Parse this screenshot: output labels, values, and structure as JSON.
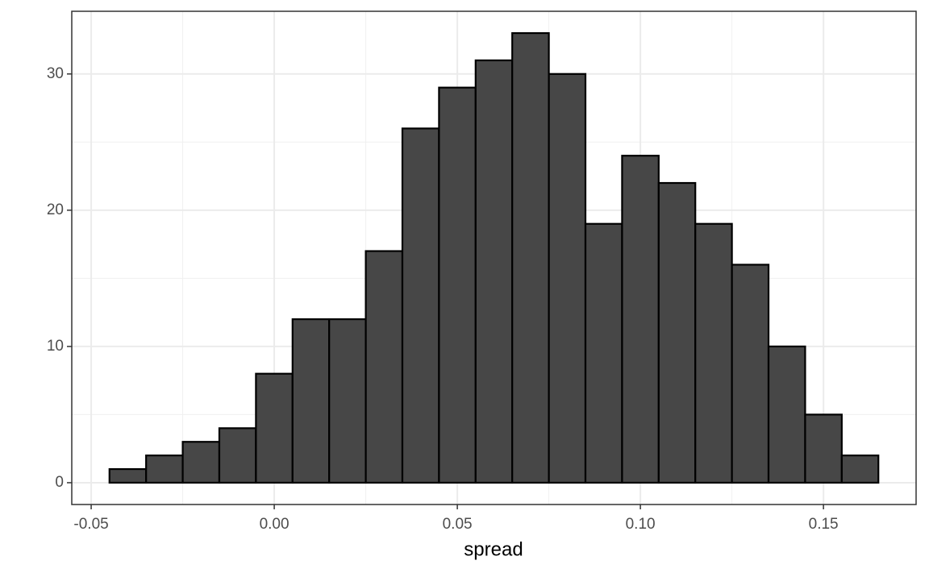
{
  "chart_data": {
    "type": "histogram",
    "xlabel": "spread",
    "bins": [
      -0.045,
      -0.035,
      -0.025,
      -0.015,
      -0.005,
      0.005,
      0.015,
      0.025,
      0.035,
      0.045,
      0.055,
      0.065,
      0.075,
      0.085,
      0.095,
      0.105,
      0.115,
      0.125,
      0.135,
      0.145,
      0.155,
      0.165
    ],
    "values": [
      1,
      2,
      3,
      4,
      8,
      12,
      12,
      17,
      26,
      29,
      31,
      33,
      30,
      19,
      24,
      22,
      19,
      16,
      10,
      5,
      2
    ],
    "color": "#474747",
    "edgecolor": "#000000",
    "xlim": [
      -0.0553,
      0.1753
    ],
    "ylim": [
      -1.6,
      34.6
    ],
    "xticks": [
      -0.05,
      {
        "value": 0,
        "label": "0.00"
      },
      0.05,
      {
        "value": 0.1,
        "label": "0.10"
      },
      0.15
    ],
    "x_minor_ticks": [
      -0.025,
      0.025,
      0.075,
      0.125
    ],
    "yticks": [
      0,
      10,
      20,
      30
    ],
    "y_minor_ticks": [
      5,
      15,
      25
    ],
    "grid": true
  }
}
